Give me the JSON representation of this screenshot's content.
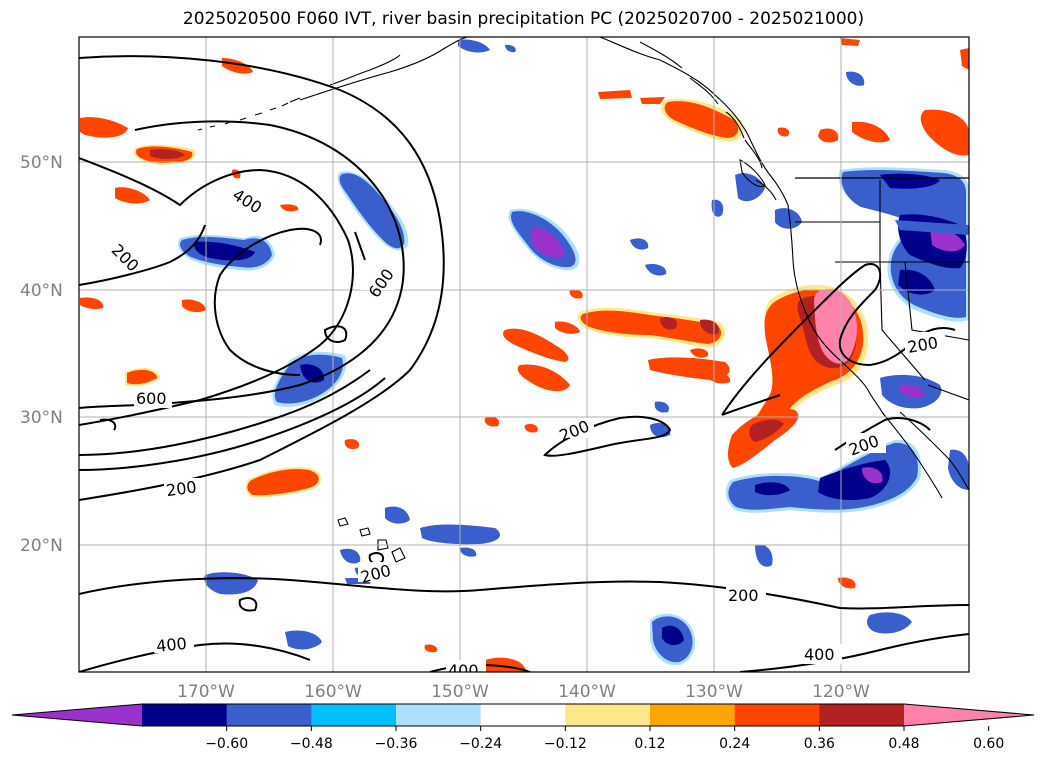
{
  "title": "2025020500 F060 IVT, river basin precipitation PC (2025020700 - 2025021000)",
  "map": {
    "lat_labels": [
      "50°N",
      "40°N",
      "30°N",
      "20°N"
    ],
    "lon_labels": [
      "170°W",
      "160°W",
      "150°W",
      "140°W",
      "130°W",
      "120°W"
    ],
    "contour_labels": [
      "400",
      "200",
      "600",
      "600",
      "200",
      "200",
      "200",
      "200",
      "200",
      "400",
      "400",
      "400",
      "200"
    ],
    "colors": {
      "neg_extreme": "#9932CC",
      "neg_strong": "#00008B",
      "neg_mid": "#3A5FCD",
      "neg_light": "#00BFFF",
      "neg_faint": "#ADDFFF",
      "neutral": "#FFFFFF",
      "pos_faint": "#FFE88C",
      "pos_light": "#FFA500",
      "pos_mid": "#FF4500",
      "pos_strong": "#B22222",
      "pos_extreme": "#FF82AB"
    }
  },
  "colorbar": {
    "ticks": [
      "−0.60",
      "−0.48",
      "−0.36",
      "−0.24",
      "−0.12",
      "0.12",
      "0.24",
      "0.36",
      "0.48",
      "0.60"
    ],
    "colors": [
      "#9932CC",
      "#00008B",
      "#3A5FCD",
      "#00BFFF",
      "#ADDFFF",
      "#FFFFFF",
      "#FFE88C",
      "#FFA500",
      "#FF4500",
      "#B22222",
      "#FF82AB"
    ]
  }
}
